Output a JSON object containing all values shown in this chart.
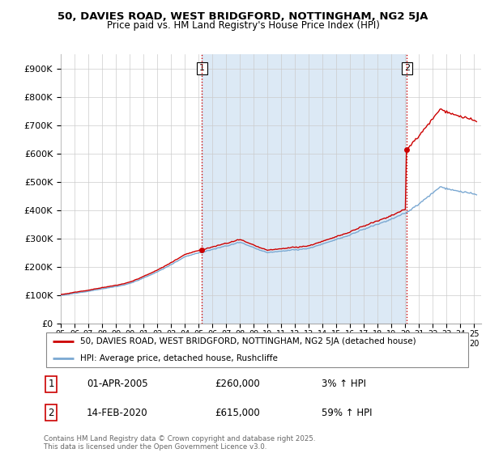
{
  "title_line1": "50, DAVIES ROAD, WEST BRIDGFORD, NOTTINGHAM, NG2 5JA",
  "title_line2": "Price paid vs. HM Land Registry's House Price Index (HPI)",
  "ylabel_ticks": [
    "£0",
    "£100K",
    "£200K",
    "£300K",
    "£400K",
    "£500K",
    "£600K",
    "£700K",
    "£800K",
    "£900K"
  ],
  "ytick_values": [
    0,
    100000,
    200000,
    300000,
    400000,
    500000,
    600000,
    700000,
    800000,
    900000
  ],
  "ylim": [
    0,
    950000
  ],
  "xlim_start": 1995.0,
  "xlim_end": 2025.5,
  "legend_line1": "50, DAVIES ROAD, WEST BRIDGFORD, NOTTINGHAM, NG2 5JA (detached house)",
  "legend_line2": "HPI: Average price, detached house, Rushcliffe",
  "sale1_date": "01-APR-2005",
  "sale1_price": "£260,000",
  "sale1_hpi": "3% ↑ HPI",
  "sale2_date": "14-FEB-2020",
  "sale2_price": "£615,000",
  "sale2_hpi": "59% ↑ HPI",
  "footnote": "Contains HM Land Registry data © Crown copyright and database right 2025.\nThis data is licensed under the Open Government Licence v3.0.",
  "sale1_year": 2005.25,
  "sale1_value": 260000,
  "sale2_year": 2020.12,
  "sale2_value": 615000,
  "red_color": "#cc0000",
  "blue_color": "#7aa8d2",
  "shade_color": "#dce9f5",
  "background_color": "#ffffff",
  "grid_color": "#cccccc"
}
